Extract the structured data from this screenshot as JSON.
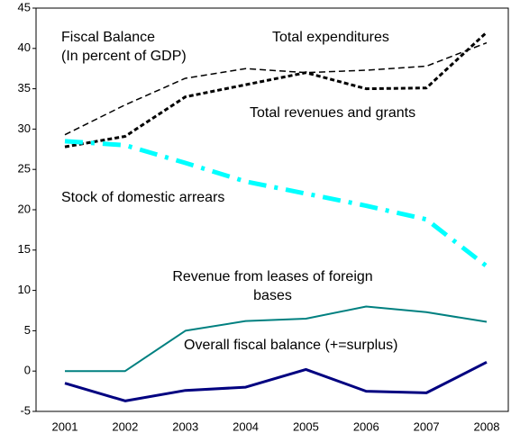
{
  "chart_data": {
    "type": "line",
    "title": [
      "Fiscal Balance",
      "(In percent of GDP)"
    ],
    "categories": [
      "2001",
      "2002",
      "2003",
      "2004",
      "2005",
      "2006",
      "2007",
      "2008"
    ],
    "series": [
      {
        "name": "Total expenditures",
        "color": "#000000",
        "values": [
          29.3,
          33,
          36.3,
          37.5,
          37,
          37.3,
          37.8,
          40.7
        ]
      },
      {
        "name": "Total revenues and grants",
        "color": "#000000",
        "values": [
          27.8,
          29.1,
          34,
          35.5,
          37,
          35,
          35.1,
          42
        ]
      },
      {
        "name": "Stock of domestic arrears",
        "color": "#00ffff",
        "values": [
          28.5,
          28,
          25.8,
          23.5,
          22,
          20.5,
          18.8,
          13
        ]
      },
      {
        "name": "Revenue from leases of foreign bases",
        "color": "#008080",
        "values": [
          0,
          0,
          5,
          6.2,
          6.5,
          8,
          7.3,
          6.1
        ]
      },
      {
        "name": "Overall fiscal balance (+=surplus)",
        "color": "#000080",
        "values": [
          -1.5,
          -3.7,
          -2.4,
          -2,
          0.2,
          -2.5,
          -2.7,
          1.1
        ]
      }
    ],
    "ylim": [
      -5,
      45
    ],
    "yticks": [
      -5,
      0,
      5,
      10,
      15,
      20,
      25,
      30,
      35,
      40,
      45
    ],
    "grid": false
  }
}
